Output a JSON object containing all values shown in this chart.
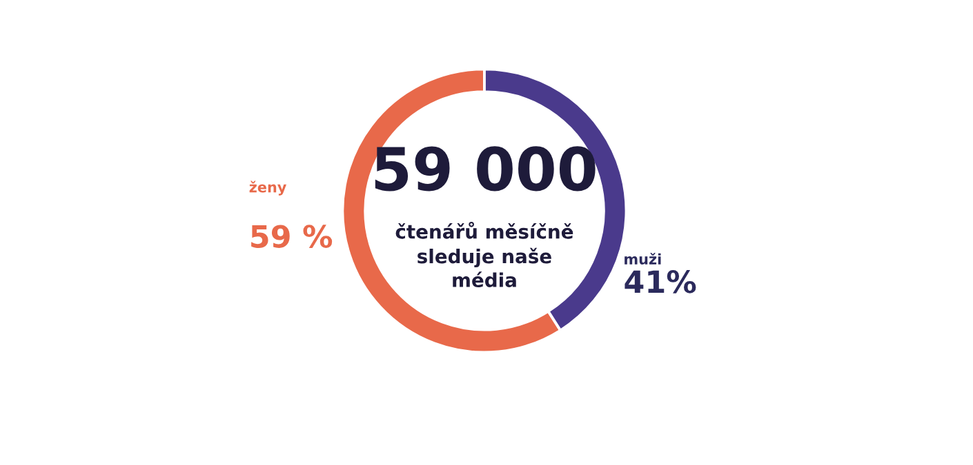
{
  "chart_data": {
    "type": "donut",
    "categories": [
      "ženy",
      "muži"
    ],
    "values": [
      59,
      41
    ],
    "colors": [
      "#e8694a",
      "#4a3a8c"
    ],
    "value_labels": [
      "59 %",
      "41%"
    ],
    "annotations": [
      "59 000",
      "čtenářů měsíčně\nsleduje naše\nmédia"
    ]
  }
}
